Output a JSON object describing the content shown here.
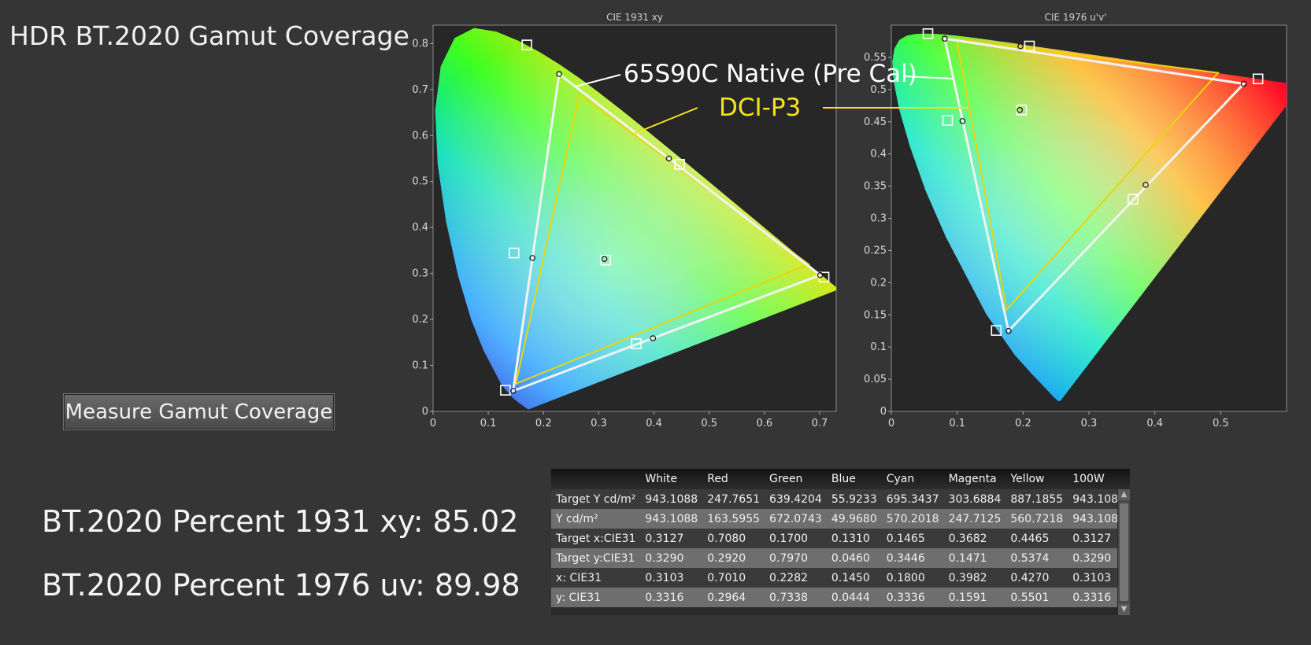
{
  "title": "HDR BT.2020  Gamut Coverage",
  "measure_button": "Measure Gamut Coverage",
  "stats": {
    "xy": "BT.2020 Percent 1931 xy: 85.02",
    "uv": "BT.2020 Percent 1976 uv: 89.98"
  },
  "callouts": {
    "native": "65S90C Native (Pre Cal)",
    "dci": "DCI-P3"
  },
  "colors": {
    "background": "#353535",
    "native_outline": "#f0f0f0",
    "dci_outline": "#f5e31a",
    "bt2020_target_marker": "#ffffff"
  },
  "chart_data": [
    {
      "type": "scatter",
      "title": "CIE 1931 xy",
      "xlim": [
        0,
        0.73
      ],
      "ylim": [
        0,
        0.84
      ],
      "xticks": [
        "0",
        "0.1",
        "0.2",
        "0.3",
        "0.4",
        "0.5",
        "0.6",
        "0.7"
      ],
      "yticks": [
        "0",
        "0.1",
        "0.2",
        "0.3",
        "0.4",
        "0.5",
        "0.6",
        "0.7",
        "0.8"
      ],
      "targets_bt2020": [
        [
          0.708,
          0.292
        ],
        [
          0.17,
          0.797
        ],
        [
          0.131,
          0.046
        ],
        [
          0.1465,
          0.3446
        ],
        [
          0.3682,
          0.1471
        ],
        [
          0.4465,
          0.5374
        ],
        [
          0.3127,
          0.329
        ]
      ],
      "measured": [
        [
          0.701,
          0.2964
        ],
        [
          0.2282,
          0.7338
        ],
        [
          0.145,
          0.0444
        ],
        [
          0.18,
          0.3336
        ],
        [
          0.3982,
          0.1591
        ],
        [
          0.427,
          0.5501
        ],
        [
          0.3103,
          0.3316
        ]
      ],
      "dci_p3_triangle": [
        [
          0.68,
          0.32
        ],
        [
          0.265,
          0.69
        ],
        [
          0.15,
          0.06
        ]
      ]
    },
    {
      "type": "scatter",
      "title": "CIE 1976 u'v'",
      "xlim": [
        0,
        0.6
      ],
      "ylim": [
        0,
        0.6
      ],
      "xticks": [
        "0",
        "0.1",
        "0.2",
        "0.3",
        "0.4",
        "0.5"
      ],
      "yticks": [
        "0",
        "0.05",
        "0.1",
        "0.15",
        "0.2",
        "0.25",
        "0.3",
        "0.35",
        "0.4",
        "0.45",
        "0.5",
        "0.55"
      ],
      "targets_bt2020": [
        [
          0.5566,
          0.5165
        ],
        [
          0.0556,
          0.5868
        ],
        [
          0.1593,
          0.1258
        ],
        [
          0.0854,
          0.452
        ],
        [
          0.3667,
          0.3296
        ],
        [
          0.2096,
          0.5676
        ],
        [
          0.1978,
          0.4683
        ]
      ],
      "measured": [
        [
          0.535,
          0.509
        ],
        [
          0.081,
          0.579
        ],
        [
          0.178,
          0.125
        ],
        [
          0.108,
          0.451
        ],
        [
          0.386,
          0.352
        ],
        [
          0.196,
          0.5672
        ],
        [
          0.195,
          0.4683
        ]
      ],
      "dci_p3_triangle": [
        [
          0.496,
          0.526
        ],
        [
          0.099,
          0.578
        ],
        [
          0.175,
          0.158
        ]
      ]
    }
  ],
  "table": {
    "columns": [
      "",
      "White",
      "Red",
      "Green",
      "Blue",
      "Cyan",
      "Magenta",
      "Yellow",
      "100W"
    ],
    "rows": [
      [
        "Target Y cd/m²",
        "943.1088",
        "247.7651",
        "639.4204",
        "55.9233",
        "695.3437",
        "303.6884",
        "887.1855",
        "943.1088"
      ],
      [
        "Y cd/m²",
        "943.1088",
        "163.5955",
        "672.0743",
        "49.9680",
        "570.2018",
        "247.7125",
        "560.7218",
        "943.1088"
      ],
      [
        "Target x:CIE31",
        "0.3127",
        "0.7080",
        "0.1700",
        "0.1310",
        "0.1465",
        "0.3682",
        "0.4465",
        "0.3127"
      ],
      [
        "Target y:CIE31",
        "0.3290",
        "0.2920",
        "0.7970",
        "0.0460",
        "0.3446",
        "0.1471",
        "0.5374",
        "0.3290"
      ],
      [
        "x: CIE31",
        "0.3103",
        "0.7010",
        "0.2282",
        "0.1450",
        "0.1800",
        "0.3982",
        "0.4270",
        "0.3103"
      ],
      [
        "y: CIE31",
        "0.3316",
        "0.2964",
        "0.7338",
        "0.0444",
        "0.3336",
        "0.1591",
        "0.5501",
        "0.3316"
      ]
    ]
  }
}
